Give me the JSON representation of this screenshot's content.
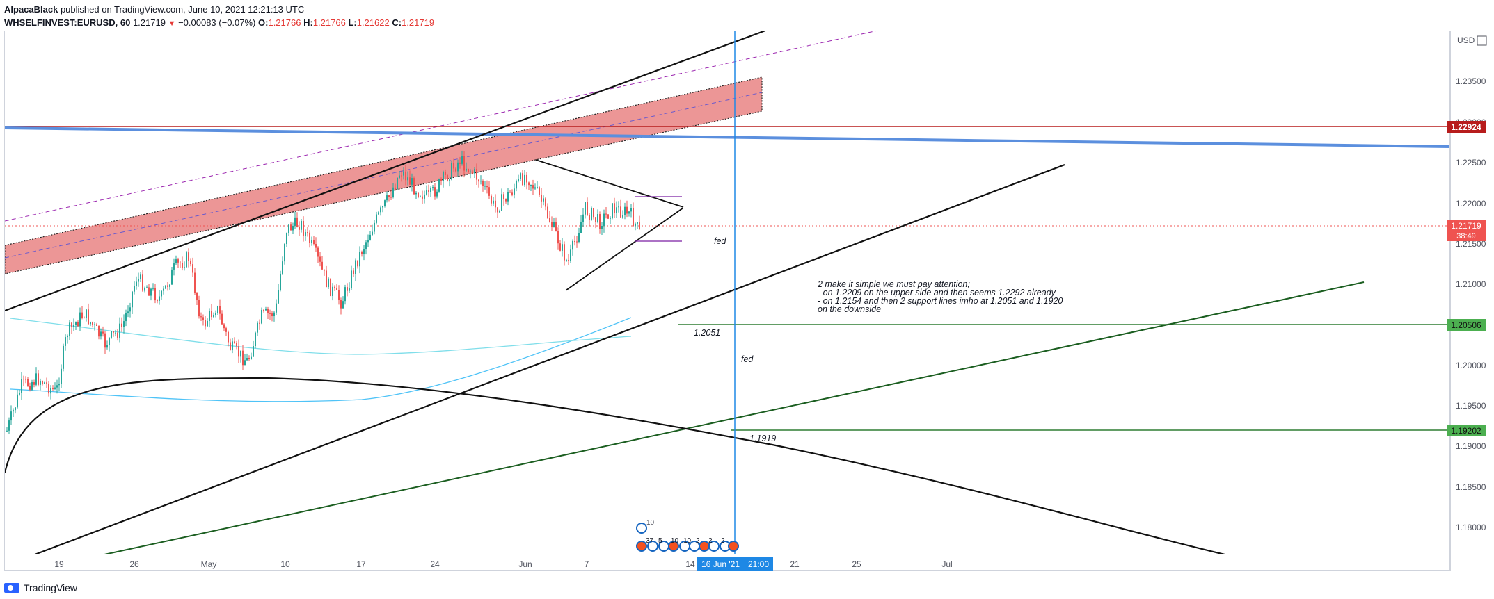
{
  "header": {
    "author": "AlpacaBlack",
    "published_text": "published on TradingView.com, June 10, 2021 12:21:13 UTC",
    "symbol": "WHSELFINVEST:EURUSD, 60",
    "last": "1.21719",
    "change": "−0.00083 (−0.07%)",
    "open_label": "O:",
    "open": "1.21766",
    "high_label": "H:",
    "high": "1.21766",
    "low_label": "L:",
    "low": "1.21622",
    "close_label": "C:",
    "close": "1.21719"
  },
  "axis": {
    "currency": "USD",
    "y_ticks": [
      "1.23500",
      "1.23000",
      "1.22500",
      "1.22000",
      "1.21500",
      "1.21000",
      "1.20500",
      "1.20000",
      "1.19500",
      "1.19000",
      "1.18500",
      "1.18000"
    ],
    "x_ticks": [
      "19",
      "26",
      "May",
      "10",
      "17",
      "24",
      "Jun",
      "7",
      "14",
      "21",
      "25",
      "Jul"
    ],
    "crosshair_date": "16 Jun '21",
    "crosshair_time": "21:00"
  },
  "price_tags": {
    "upper": "1.22924",
    "current": "1.21719",
    "countdown": "38:49",
    "mid": "1.20506",
    "low": "1.19202"
  },
  "annotations": {
    "fed1": "fed",
    "fed2": "fed",
    "level_a": "1.2051",
    "level_b": "1.1919",
    "note_lines": [
      "2 make it simple we must pay attention;",
      "- on 1.2209 on the upper side and then seems 1.2292 already",
      "- on 1.2154 and then 2 support lines imho at 1.2051 and 1.1920",
      "on the downside"
    ]
  },
  "events": {
    "top_count": "10",
    "counts": [
      "37",
      "5",
      "10",
      "10",
      "2",
      "2",
      "2"
    ]
  },
  "footer": {
    "brand": "TradingView"
  },
  "colors": {
    "up": "#26a69a",
    "down": "#ef5350",
    "channel": "#e57373",
    "blue_line": "#5b8fde",
    "green": "#2e7d32",
    "ma": "#4fc3f7",
    "red_tag": "#b71c1c"
  }
}
